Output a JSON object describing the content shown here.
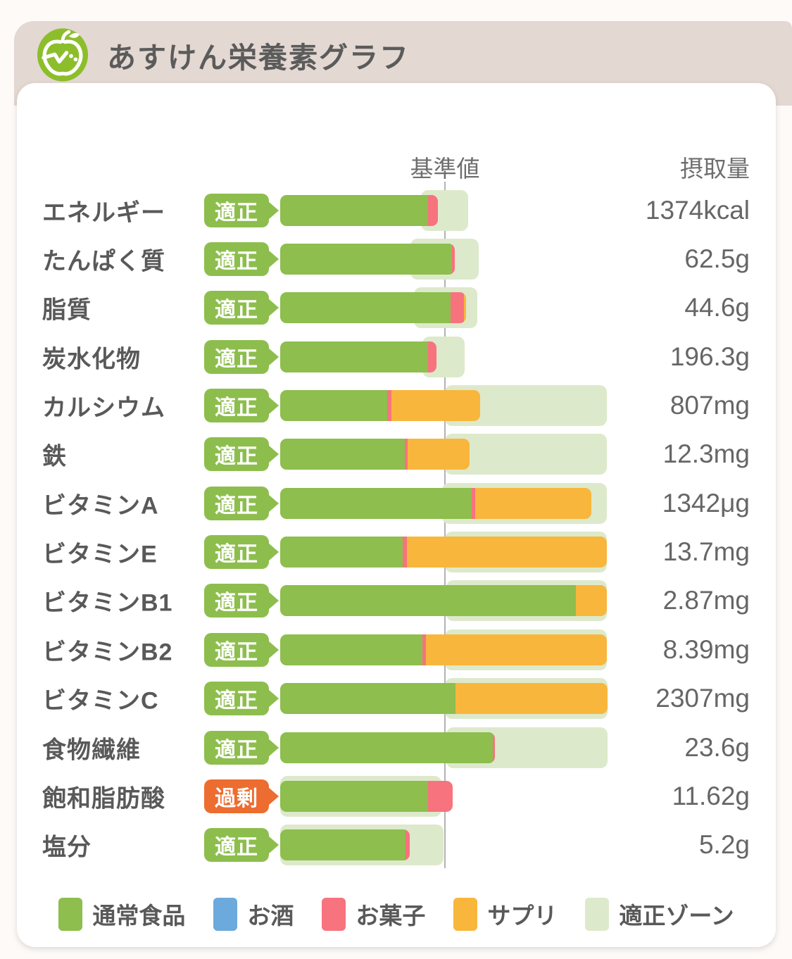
{
  "header": {
    "title": "あすけん栄養素グラフ",
    "icon": "apple-logo-icon"
  },
  "columns": {
    "standard": "基準値",
    "intake": "摂取量"
  },
  "colors": {
    "normal": "#8DBE4E",
    "alcohol": "#6CA9DC",
    "sweets": "#F7737E",
    "supplement": "#F9B63C",
    "zone": "#DDE9CB",
    "badge_ok": "#8DBE4D",
    "badge_over": "#EC6D2F",
    "header_bg": "#E3D8D2",
    "icon_green": "#8CBE2B",
    "label_text": "#595959",
    "value_text": "#666666",
    "ref_line": "#B3B3B3"
  },
  "chart_data": {
    "type": "bar",
    "orientation": "horizontal",
    "note": "pct values are percent of the standard value (基準値 = 100); zone is [start,end] in same units",
    "axis_max_pct": 198.3,
    "rows": [
      {
        "label": "エネルギー",
        "status": "適正",
        "status_type": "ok",
        "value": "1374kcal",
        "segments": [
          {
            "type": "normal",
            "pct": 89.7
          },
          {
            "type": "sweets",
            "pct": 6.0
          }
        ],
        "zone": [
          85.5,
          114.1
        ]
      },
      {
        "label": "たんぱく質",
        "status": "適正",
        "status_type": "ok",
        "value": "62.5g",
        "segments": [
          {
            "type": "normal",
            "pct": 104.3
          },
          {
            "type": "sweets",
            "pct": 1.7
          }
        ],
        "zone": [
          79.1,
          120.5
        ]
      },
      {
        "label": "脂質",
        "status": "適正",
        "status_type": "ok",
        "value": "44.6g",
        "segments": [
          {
            "type": "normal",
            "pct": 103.4
          },
          {
            "type": "sweets",
            "pct": 8.1
          },
          {
            "type": "supplement",
            "pct": 1.3
          }
        ],
        "zone": [
          81.2,
          119.7
        ]
      },
      {
        "label": "炭水化物",
        "status": "適正",
        "status_type": "ok",
        "value": "196.3g",
        "segments": [
          {
            "type": "normal",
            "pct": 89.7
          },
          {
            "type": "sweets",
            "pct": 5.1
          }
        ],
        "zone": [
          86.3,
          112.0
        ]
      },
      {
        "label": "カルシウム",
        "status": "適正",
        "status_type": "ok",
        "value": "807mg",
        "segments": [
          {
            "type": "normal",
            "pct": 65.0
          },
          {
            "type": "sweets",
            "pct": 2.6
          },
          {
            "type": "supplement",
            "pct": 53.8
          }
        ],
        "zone": [
          100.0,
          198.3
        ]
      },
      {
        "label": "鉄",
        "status": "適正",
        "status_type": "ok",
        "value": "12.3mg",
        "segments": [
          {
            "type": "normal",
            "pct": 75.6
          },
          {
            "type": "sweets",
            "pct": 1.7
          },
          {
            "type": "supplement",
            "pct": 37.6
          }
        ],
        "zone": [
          100.0,
          198.3
        ]
      },
      {
        "label": "ビタミンA",
        "status": "適正",
        "status_type": "ok",
        "value": "1342μg",
        "segments": [
          {
            "type": "normal",
            "pct": 116.2
          },
          {
            "type": "sweets",
            "pct": 2.1
          },
          {
            "type": "supplement",
            "pct": 70.5
          }
        ],
        "zone": [
          98.3,
          198.3
        ]
      },
      {
        "label": "ビタミンE",
        "status": "適正",
        "status_type": "ok",
        "value": "13.7mg",
        "segments": [
          {
            "type": "normal",
            "pct": 74.4
          },
          {
            "type": "sweets",
            "pct": 2.6
          },
          {
            "type": "supplement",
            "pct": 121.3
          }
        ],
        "zone": [
          100.0,
          198.3
        ]
      },
      {
        "label": "ビタミンB1",
        "status": "適正",
        "status_type": "ok",
        "value": "2.87mg",
        "segments": [
          {
            "type": "normal",
            "pct": 179.5
          },
          {
            "type": "supplement",
            "pct": 18.8
          }
        ],
        "zone": [
          100.9,
          198.3
        ]
      },
      {
        "label": "ビタミンB2",
        "status": "適正",
        "status_type": "ok",
        "value": "8.39mg",
        "segments": [
          {
            "type": "normal",
            "pct": 86.3
          },
          {
            "type": "sweets",
            "pct": 2.1
          },
          {
            "type": "supplement",
            "pct": 109.8
          }
        ],
        "zone": [
          100.0,
          198.3
        ]
      },
      {
        "label": "ビタミンC",
        "status": "適正",
        "status_type": "ok",
        "value": "2307mg",
        "segments": [
          {
            "type": "normal",
            "pct": 106.4
          },
          {
            "type": "supplement",
            "pct": 92.3
          }
        ],
        "zone": [
          100.0,
          198.7
        ]
      },
      {
        "label": "食物繊維",
        "status": "適正",
        "status_type": "ok",
        "value": "23.6g",
        "segments": [
          {
            "type": "normal",
            "pct": 129.1
          },
          {
            "type": "sweets",
            "pct": 1.3
          }
        ],
        "zone": [
          100.9,
          198.7
        ]
      },
      {
        "label": "飽和脂肪酸",
        "status": "過剰",
        "status_type": "over",
        "value": "11.62g",
        "segments": [
          {
            "type": "normal",
            "pct": 89.7
          },
          {
            "type": "sweets",
            "pct": 15.0
          }
        ],
        "zone": [
          0,
          97.9
        ]
      },
      {
        "label": "塩分",
        "status": "適正",
        "status_type": "ok",
        "value": "5.2g",
        "segments": [
          {
            "type": "normal",
            "pct": 76.1
          },
          {
            "type": "sweets",
            "pct": 2.6
          }
        ],
        "zone": [
          0,
          99.1
        ]
      }
    ],
    "legend": [
      {
        "label": "通常食品",
        "type": "normal"
      },
      {
        "label": "お酒",
        "type": "alcohol"
      },
      {
        "label": "お菓子",
        "type": "sweets"
      },
      {
        "label": "サプリ",
        "type": "supplement"
      },
      {
        "label": "適正ゾーン",
        "type": "zone"
      }
    ]
  }
}
